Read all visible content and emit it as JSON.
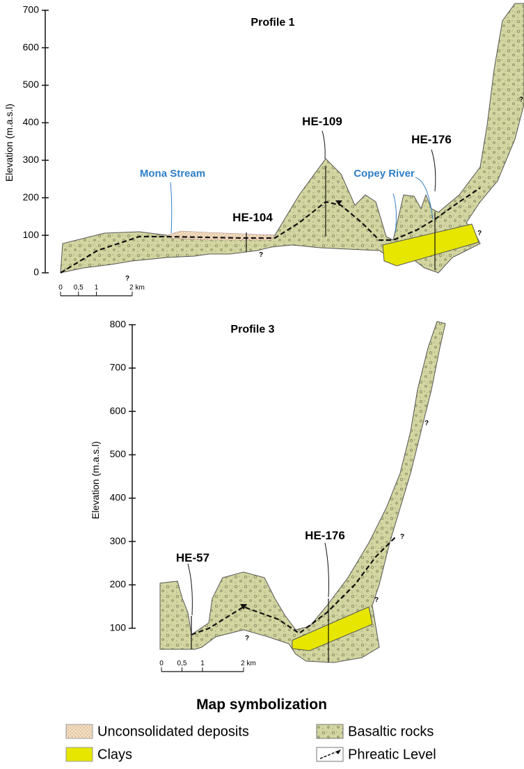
{
  "profiles": [
    {
      "title": "Profile 1",
      "y_label": "Elevation (m.a.s.l)",
      "yticks": [
        0,
        100,
        200,
        300,
        400,
        500,
        600,
        700
      ],
      "scale_ticks": [
        0,
        {
          "value": 0.5,
          "label": "0,5"
        },
        1,
        {
          "value": 2,
          "label": "2 km"
        }
      ],
      "wells": [
        "HE-104",
        "HE-109",
        "HE-176"
      ],
      "rivers": [
        "Mona Stream",
        "Copey River"
      ],
      "uncertain": [
        "?",
        "?",
        "?",
        "?"
      ]
    },
    {
      "title": "Profile 3",
      "y_label": "Elevation (m.a.s.l)",
      "yticks": [
        100,
        200,
        300,
        400,
        500,
        600,
        700,
        800
      ],
      "scale_ticks": [
        0,
        {
          "value": 0.5,
          "label": "0,5"
        },
        1,
        {
          "value": 2,
          "label": "2 km"
        }
      ],
      "wells": [
        "HE-57",
        "HE-176"
      ],
      "uncertain": [
        "?",
        "?",
        "?",
        "?"
      ]
    }
  ],
  "legend": {
    "title": "Map symbolization",
    "items": [
      "Unconsolidated deposits",
      "Clays",
      "Basaltic rocks",
      "Phreatic Level"
    ]
  }
}
